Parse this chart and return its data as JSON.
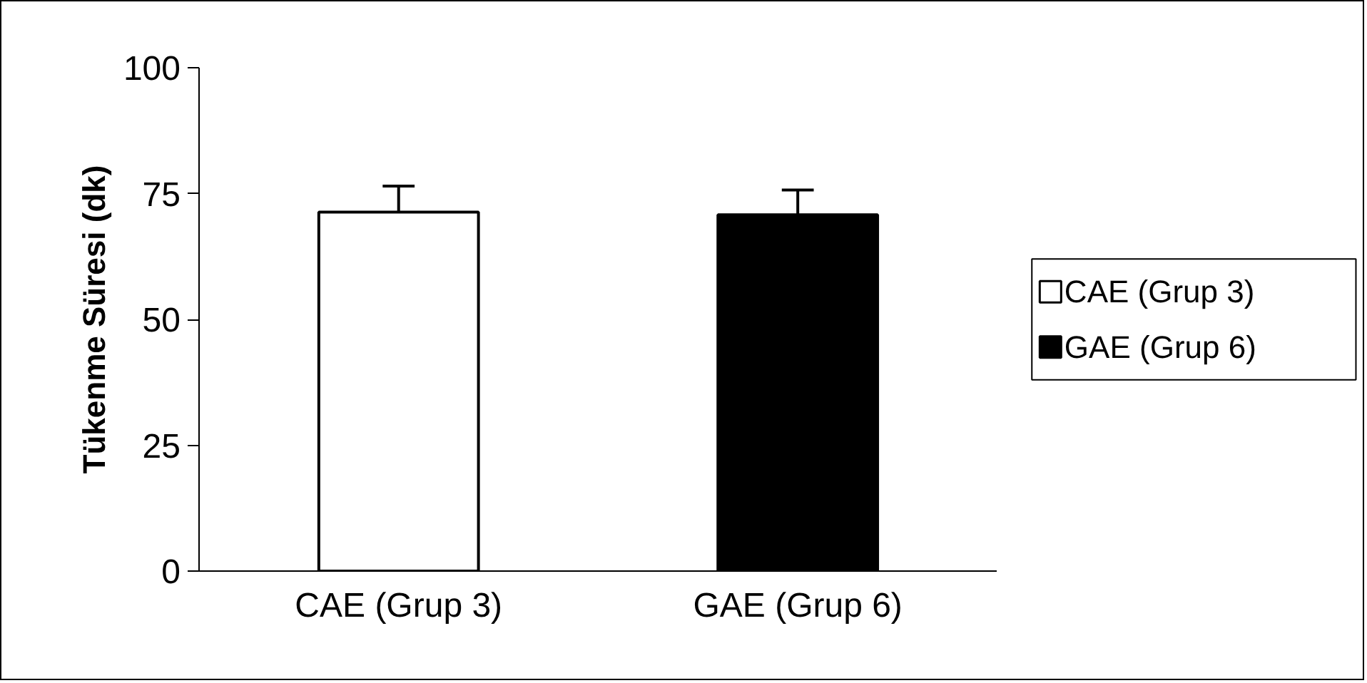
{
  "chart_data": {
    "type": "bar",
    "ylabel": "Tükenme Süresi (dk)",
    "categories": [
      "CAE (Grup 3)",
      "GAE (Grup 6)"
    ],
    "series": [
      {
        "name": "CAE (Grup 3)",
        "color": "#ffffff",
        "values": [
          71.3,
          null
        ],
        "errors": [
          [
            71.3,
            76.5
          ],
          null
        ]
      },
      {
        "name": "GAE (Grup 6)",
        "color": "#000000",
        "values": [
          null,
          70.8
        ],
        "errors": [
          null,
          [
            70.8,
            75.7
          ]
        ]
      }
    ],
    "ylim": [
      0,
      100
    ],
    "yticks": [
      0,
      25,
      50,
      75,
      100
    ],
    "grid": false,
    "legend": "right"
  }
}
